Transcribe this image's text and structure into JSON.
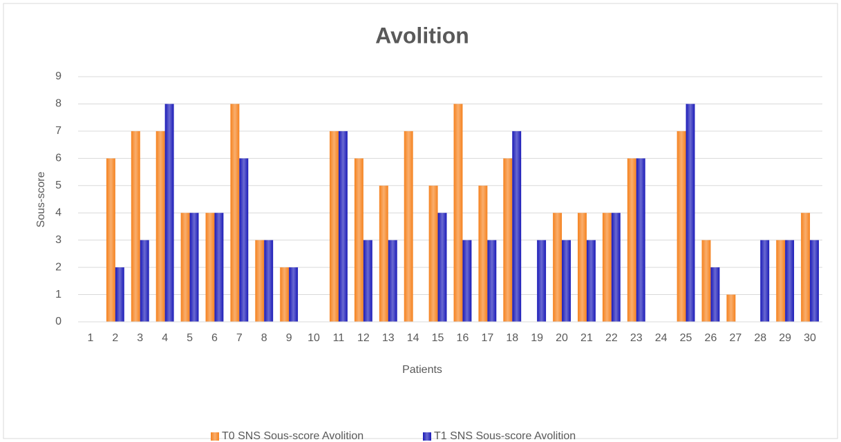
{
  "chart_data": {
    "type": "bar",
    "title": "Avolition",
    "x_label": "Patients",
    "y_label": "Sous-score",
    "categories": [
      1,
      2,
      3,
      4,
      5,
      6,
      7,
      8,
      9,
      10,
      11,
      12,
      13,
      14,
      15,
      16,
      17,
      18,
      19,
      20,
      21,
      22,
      23,
      24,
      25,
      26,
      27,
      28,
      29,
      30
    ],
    "series": [
      {
        "name": "T0 SNS Sous-score Avolition",
        "color": "#f5821f",
        "values": [
          0,
          6,
          7,
          7,
          4,
          4,
          8,
          3,
          2,
          0,
          7,
          6,
          5,
          7,
          5,
          8,
          5,
          6,
          0,
          4,
          4,
          4,
          6,
          0,
          7,
          3,
          1,
          0,
          3,
          4
        ]
      },
      {
        "name": "T1 SNS Sous-score Avolition",
        "color": "#1a1ab8",
        "values": [
          0,
          2,
          3,
          8,
          4,
          4,
          6,
          3,
          2,
          0,
          7,
          3,
          3,
          0,
          4,
          3,
          3,
          7,
          3,
          3,
          3,
          4,
          6,
          0,
          8,
          2,
          0,
          3,
          3,
          3
        ]
      }
    ],
    "ylim": [
      0,
      9
    ],
    "yticks": [
      0,
      1,
      2,
      3,
      4,
      5,
      6,
      7,
      8,
      9
    ],
    "grid": true,
    "legend": "bottom"
  }
}
